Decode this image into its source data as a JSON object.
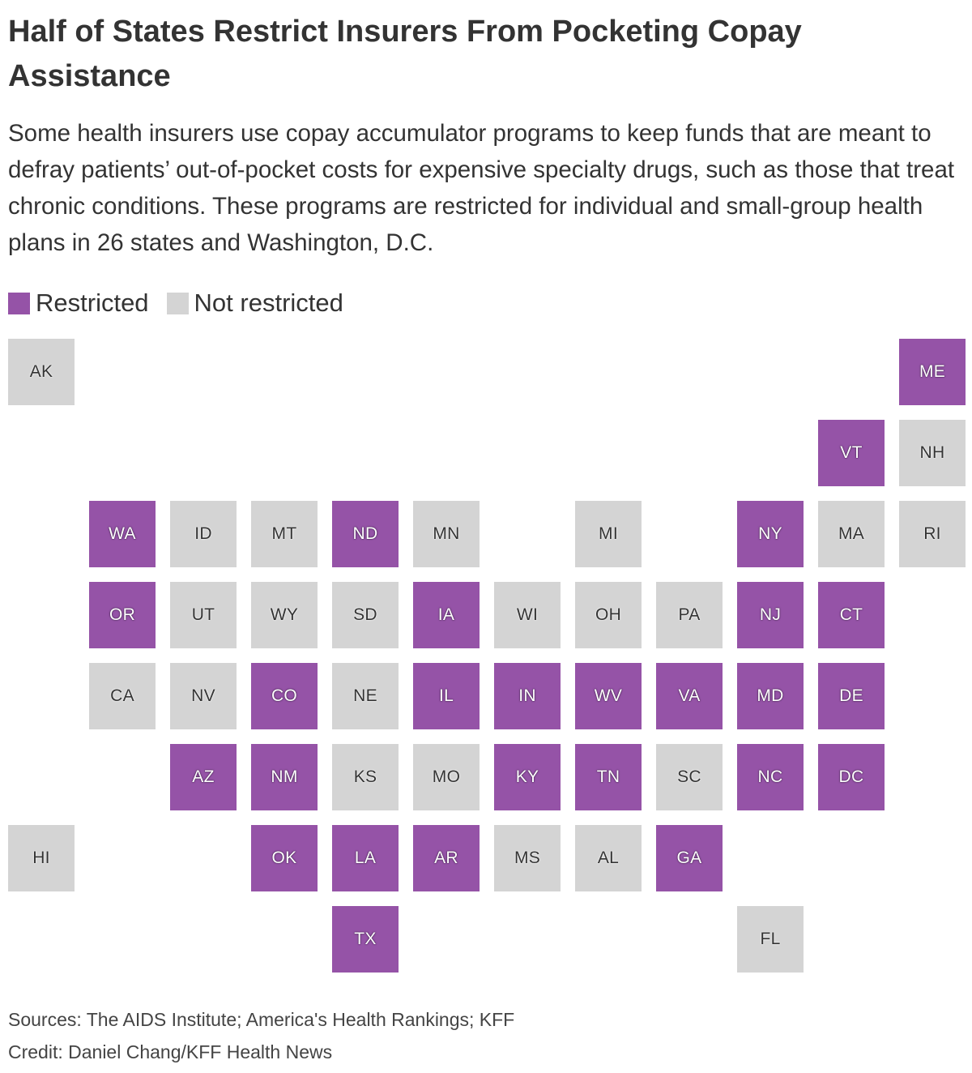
{
  "title": "Half of States Restrict Insurers From Pocketing Copay Assistance",
  "subtitle": "Some health insurers use copay accumulator programs to keep funds that are meant to defray patients’ out-of-pocket costs for expensive specialty drugs, such as those that treat chronic conditions. These programs are restricted for individual and small-group health plans in 26 states and Washington, D.C.",
  "legend": {
    "restricted_label": "Restricted",
    "not_restricted_label": "Not restricted"
  },
  "colors": {
    "restricted": "#9553a7",
    "not_restricted": "#d4d4d4",
    "text": "#333333"
  },
  "map": {
    "tiles": [
      {
        "state": "AK",
        "status": "not_restricted",
        "col": 0,
        "row": 0
      },
      {
        "state": "ME",
        "status": "restricted",
        "col": 11,
        "row": 0
      },
      {
        "state": "VT",
        "status": "restricted",
        "col": 10,
        "row": 1
      },
      {
        "state": "NH",
        "status": "not_restricted",
        "col": 11,
        "row": 1
      },
      {
        "state": "WA",
        "status": "restricted",
        "col": 1,
        "row": 2
      },
      {
        "state": "ID",
        "status": "not_restricted",
        "col": 2,
        "row": 2
      },
      {
        "state": "MT",
        "status": "not_restricted",
        "col": 3,
        "row": 2
      },
      {
        "state": "ND",
        "status": "restricted",
        "col": 4,
        "row": 2
      },
      {
        "state": "MN",
        "status": "not_restricted",
        "col": 5,
        "row": 2
      },
      {
        "state": "MI",
        "status": "not_restricted",
        "col": 7,
        "row": 2
      },
      {
        "state": "NY",
        "status": "restricted",
        "col": 9,
        "row": 2
      },
      {
        "state": "MA",
        "status": "not_restricted",
        "col": 10,
        "row": 2
      },
      {
        "state": "RI",
        "status": "not_restricted",
        "col": 11,
        "row": 2
      },
      {
        "state": "OR",
        "status": "restricted",
        "col": 1,
        "row": 3
      },
      {
        "state": "UT",
        "status": "not_restricted",
        "col": 2,
        "row": 3
      },
      {
        "state": "WY",
        "status": "not_restricted",
        "col": 3,
        "row": 3
      },
      {
        "state": "SD",
        "status": "not_restricted",
        "col": 4,
        "row": 3
      },
      {
        "state": "IA",
        "status": "restricted",
        "col": 5,
        "row": 3
      },
      {
        "state": "WI",
        "status": "not_restricted",
        "col": 6,
        "row": 3
      },
      {
        "state": "OH",
        "status": "not_restricted",
        "col": 7,
        "row": 3
      },
      {
        "state": "PA",
        "status": "not_restricted",
        "col": 8,
        "row": 3
      },
      {
        "state": "NJ",
        "status": "restricted",
        "col": 9,
        "row": 3
      },
      {
        "state": "CT",
        "status": "restricted",
        "col": 10,
        "row": 3
      },
      {
        "state": "CA",
        "status": "not_restricted",
        "col": 1,
        "row": 4
      },
      {
        "state": "NV",
        "status": "not_restricted",
        "col": 2,
        "row": 4
      },
      {
        "state": "CO",
        "status": "restricted",
        "col": 3,
        "row": 4
      },
      {
        "state": "NE",
        "status": "not_restricted",
        "col": 4,
        "row": 4
      },
      {
        "state": "IL",
        "status": "restricted",
        "col": 5,
        "row": 4
      },
      {
        "state": "IN",
        "status": "restricted",
        "col": 6,
        "row": 4
      },
      {
        "state": "WV",
        "status": "restricted",
        "col": 7,
        "row": 4
      },
      {
        "state": "VA",
        "status": "restricted",
        "col": 8,
        "row": 4
      },
      {
        "state": "MD",
        "status": "restricted",
        "col": 9,
        "row": 4
      },
      {
        "state": "DE",
        "status": "restricted",
        "col": 10,
        "row": 4
      },
      {
        "state": "AZ",
        "status": "restricted",
        "col": 2,
        "row": 5
      },
      {
        "state": "NM",
        "status": "restricted",
        "col": 3,
        "row": 5
      },
      {
        "state": "KS",
        "status": "not_restricted",
        "col": 4,
        "row": 5
      },
      {
        "state": "MO",
        "status": "not_restricted",
        "col": 5,
        "row": 5
      },
      {
        "state": "KY",
        "status": "restricted",
        "col": 6,
        "row": 5
      },
      {
        "state": "TN",
        "status": "restricted",
        "col": 7,
        "row": 5
      },
      {
        "state": "SC",
        "status": "not_restricted",
        "col": 8,
        "row": 5
      },
      {
        "state": "NC",
        "status": "restricted",
        "col": 9,
        "row": 5
      },
      {
        "state": "DC",
        "status": "restricted",
        "col": 10,
        "row": 5
      },
      {
        "state": "HI",
        "status": "not_restricted",
        "col": 0,
        "row": 6
      },
      {
        "state": "OK",
        "status": "restricted",
        "col": 3,
        "row": 6
      },
      {
        "state": "LA",
        "status": "restricted",
        "col": 4,
        "row": 6
      },
      {
        "state": "AR",
        "status": "restricted",
        "col": 5,
        "row": 6
      },
      {
        "state": "MS",
        "status": "not_restricted",
        "col": 6,
        "row": 6
      },
      {
        "state": "AL",
        "status": "not_restricted",
        "col": 7,
        "row": 6
      },
      {
        "state": "GA",
        "status": "restricted",
        "col": 8,
        "row": 6
      },
      {
        "state": "TX",
        "status": "restricted",
        "col": 4,
        "row": 7
      },
      {
        "state": "FL",
        "status": "not_restricted",
        "col": 9,
        "row": 7
      }
    ]
  },
  "footer": {
    "sources": "Sources: The AIDS Institute; America's Health Rankings; KFF",
    "credit": "Credit: Daniel Chang/KFF Health News"
  }
}
